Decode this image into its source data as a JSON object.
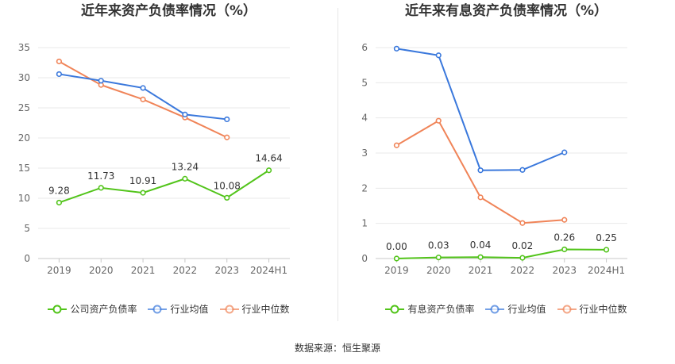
{
  "chart_data": [
    {
      "type": "line",
      "title": "近年来资产负债率情况（%）",
      "categories": [
        "2019",
        "2020",
        "2021",
        "2022",
        "2023",
        "2024H1"
      ],
      "ylim": [
        0,
        35
      ],
      "yticks": [
        0,
        5,
        10,
        15,
        20,
        25,
        30,
        35
      ],
      "grid": true,
      "legend_position": "bottom",
      "series": [
        {
          "name": "公司资产负债率",
          "color": "#52c41a",
          "values": [
            9.28,
            11.73,
            10.91,
            13.24,
            10.08,
            14.64
          ],
          "labels": [
            "9.28",
            "11.73",
            "10.91",
            "13.24",
            "10.08",
            "14.64"
          ]
        },
        {
          "name": "行业均值",
          "color": "#3a78dc",
          "values": [
            30.6,
            29.5,
            28.3,
            23.9,
            23.1,
            null
          ]
        },
        {
          "name": "行业中位数",
          "color": "#f08458",
          "values": [
            32.7,
            28.8,
            26.4,
            23.4,
            20.1,
            null
          ]
        }
      ]
    },
    {
      "type": "line",
      "title": "近年来有息资产负债率情况（%）",
      "categories": [
        "2019",
        "2020",
        "2021",
        "2022",
        "2023",
        "2024H1"
      ],
      "ylim": [
        0,
        6
      ],
      "yticks": [
        0,
        1,
        2,
        3,
        4,
        5,
        6
      ],
      "grid": true,
      "legend_position": "bottom",
      "series": [
        {
          "name": "有息资产负债率",
          "color": "#52c41a",
          "values": [
            0.0,
            0.03,
            0.04,
            0.02,
            0.26,
            0.25
          ],
          "labels": [
            "0.00",
            "0.03",
            "0.04",
            "0.02",
            "0.26",
            "0.25"
          ]
        },
        {
          "name": "行业均值",
          "color": "#3a78dc",
          "values": [
            5.97,
            5.78,
            2.51,
            2.52,
            3.02,
            null
          ]
        },
        {
          "name": "行业中位数",
          "color": "#f08458",
          "values": [
            3.22,
            3.92,
            1.74,
            1.01,
            1.1,
            null
          ]
        }
      ]
    }
  ],
  "source": "数据来源：恒生聚源"
}
